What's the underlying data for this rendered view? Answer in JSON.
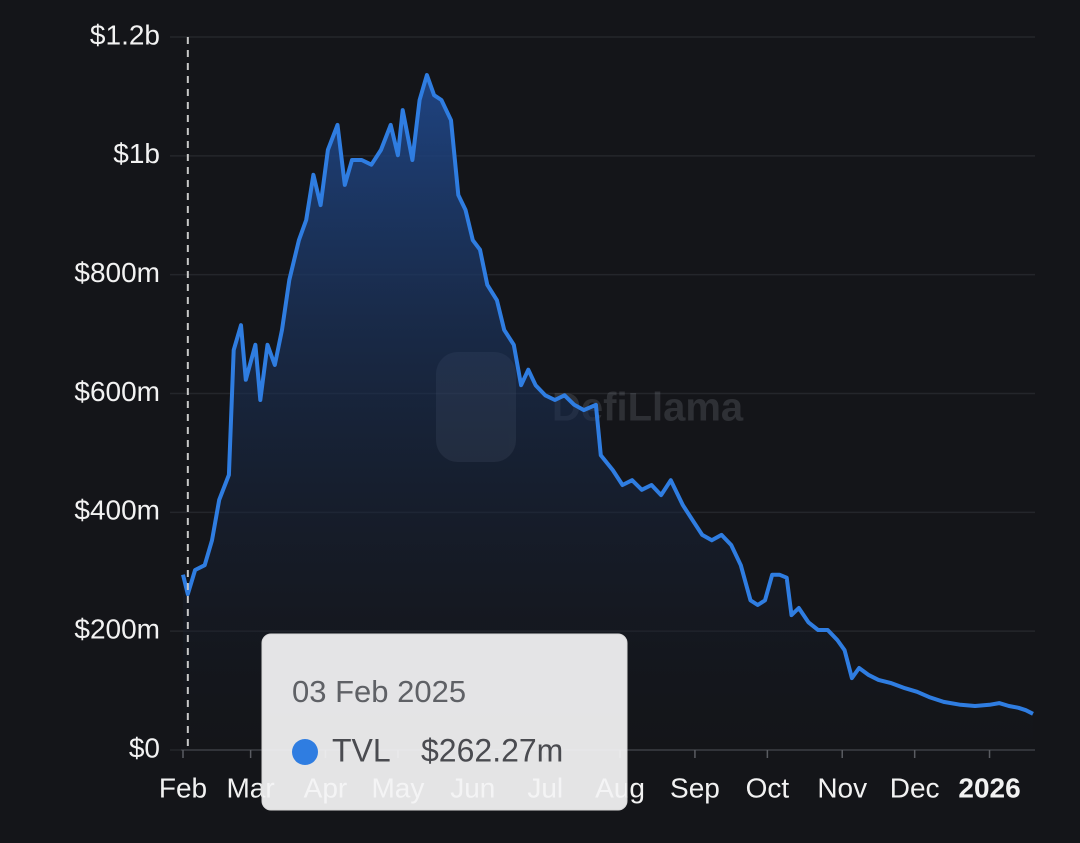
{
  "chart_data": {
    "type": "area",
    "watermark": "DefiLlama",
    "x": [
      "2025-02-01",
      "2025-02-03",
      "2025-02-06",
      "2025-02-10",
      "2025-02-13",
      "2025-02-16",
      "2025-02-20",
      "2025-02-22",
      "2025-02-25",
      "2025-02-27",
      "2025-03-03",
      "2025-03-05",
      "2025-03-08",
      "2025-03-11",
      "2025-03-14",
      "2025-03-17",
      "2025-03-21",
      "2025-03-24",
      "2025-03-27",
      "2025-03-30",
      "2025-04-02",
      "2025-04-06",
      "2025-04-09",
      "2025-04-12",
      "2025-04-16",
      "2025-04-20",
      "2025-04-24",
      "2025-04-28",
      "2025-05-01",
      "2025-05-03",
      "2025-05-07",
      "2025-05-10",
      "2025-05-13",
      "2025-05-16",
      "2025-05-19",
      "2025-05-23",
      "2025-05-26",
      "2025-05-29",
      "2025-06-01",
      "2025-06-04",
      "2025-06-07",
      "2025-06-11",
      "2025-06-14",
      "2025-06-18",
      "2025-06-21",
      "2025-06-24",
      "2025-06-27",
      "2025-07-01",
      "2025-07-05",
      "2025-07-09",
      "2025-07-13",
      "2025-07-17",
      "2025-07-22",
      "2025-07-24",
      "2025-07-29",
      "2025-08-02",
      "2025-08-06",
      "2025-08-10",
      "2025-08-14",
      "2025-08-18",
      "2025-08-22",
      "2025-08-27",
      "2025-08-31",
      "2025-09-04",
      "2025-09-08",
      "2025-09-12",
      "2025-09-16",
      "2025-09-20",
      "2025-09-24",
      "2025-09-27",
      "2025-09-30",
      "2025-10-03",
      "2025-10-06",
      "2025-10-09",
      "2025-10-11",
      "2025-10-14",
      "2025-10-18",
      "2025-10-22",
      "2025-10-26",
      "2025-10-30",
      "2025-11-02",
      "2025-11-05",
      "2025-11-08",
      "2025-11-12",
      "2025-11-16",
      "2025-11-21",
      "2025-11-27",
      "2025-12-02",
      "2025-12-07",
      "2025-12-13",
      "2025-12-20",
      "2025-12-26",
      "2026-01-01",
      "2026-01-05",
      "2026-01-09",
      "2026-01-13",
      "2026-01-16",
      "2026-01-19"
    ],
    "series": [
      {
        "name": "TVL",
        "color": "#2f7de1",
        "values": [
          295000000,
          262270000,
          303000000,
          311000000,
          353000000,
          421000000,
          463000000,
          673000000,
          715000000,
          623000000,
          682000000,
          589000000,
          682000000,
          648000000,
          707000000,
          791000000,
          858000000,
          892000000,
          968000000,
          917000000,
          1010000000,
          1052000000,
          951000000,
          993000000,
          993000000,
          985000000,
          1010000000,
          1052000000,
          1001000000,
          1077000000,
          993000000,
          1094000000,
          1136000000,
          1102000000,
          1094000000,
          1060000000,
          934000000,
          909000000,
          858000000,
          842000000,
          783000000,
          757000000,
          707000000,
          682000000,
          614000000,
          640000000,
          614000000,
          597000000,
          589000000,
          597000000,
          581000000,
          572000000,
          581000000,
          496000000,
          471000000,
          446000000,
          454000000,
          438000000,
          446000000,
          429000000,
          454000000,
          412000000,
          387000000,
          362000000,
          353000000,
          362000000,
          345000000,
          311000000,
          252000000,
          244000000,
          252000000,
          295000000,
          295000000,
          290000000,
          227000000,
          239000000,
          215000000,
          202000000,
          202000000,
          185000000,
          168000000,
          121000000,
          138000000,
          126000000,
          118000000,
          113000000,
          104000000,
          98000000,
          89000000,
          81000000,
          76000000,
          74000000,
          76000000,
          79000000,
          74000000,
          71000000,
          67000000,
          61000000
        ]
      }
    ],
    "xlim": [
      "2025-02-01",
      "2026-01-19"
    ],
    "xticks": [
      {
        "value": "2025-02-01",
        "label": "Feb"
      },
      {
        "value": "2025-03-01",
        "label": "Mar"
      },
      {
        "value": "2025-04-01",
        "label": "Apr"
      },
      {
        "value": "2025-05-01",
        "label": "May"
      },
      {
        "value": "2025-06-01",
        "label": "Jun"
      },
      {
        "value": "2025-07-01",
        "label": "Jul"
      },
      {
        "value": "2025-08-01",
        "label": "Aug"
      },
      {
        "value": "2025-09-01",
        "label": "Sep"
      },
      {
        "value": "2025-10-01",
        "label": "Oct"
      },
      {
        "value": "2025-11-01",
        "label": "Nov"
      },
      {
        "value": "2025-12-01",
        "label": "Dec"
      },
      {
        "value": "2026-01-01",
        "label": "2026"
      }
    ],
    "ylim": [
      0,
      1200000000
    ],
    "yticks": [
      {
        "value": 0,
        "label": "$0"
      },
      {
        "value": 200000000,
        "label": "$200m"
      },
      {
        "value": 400000000,
        "label": "$400m"
      },
      {
        "value": 600000000,
        "label": "$600m"
      },
      {
        "value": 800000000,
        "label": "$800m"
      },
      {
        "value": 1000000000,
        "label": "$1b"
      },
      {
        "value": 1200000000,
        "label": "$1.2b"
      }
    ],
    "grid": true,
    "tooltip": {
      "x": "2025-02-03",
      "date": "03 Feb 2025",
      "value": 262270000,
      "value_label": "$262.27m"
    }
  }
}
